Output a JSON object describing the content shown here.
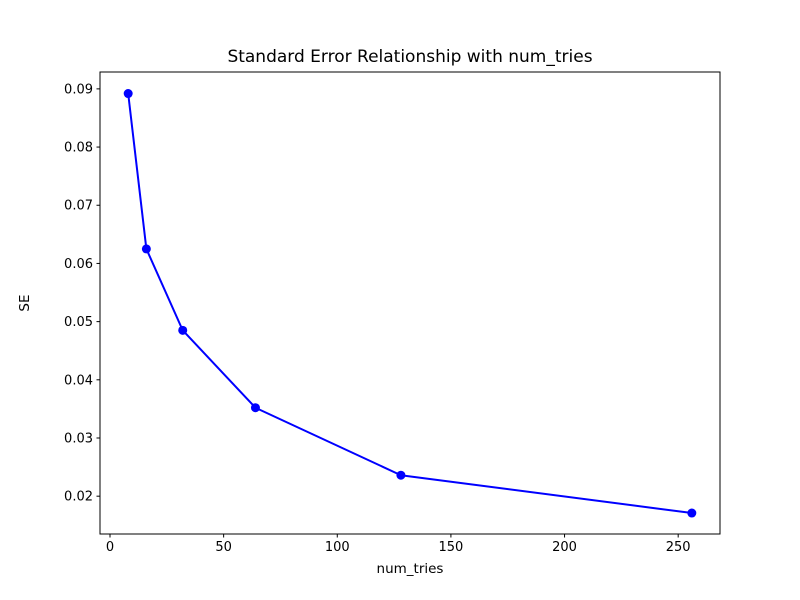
{
  "chart_data": {
    "type": "line",
    "title": "Standard Error Relationship with num_tries",
    "xlabel": "num_tries",
    "ylabel": "SE",
    "x": [
      8,
      16,
      32,
      64,
      128,
      256
    ],
    "y": [
      0.0892,
      0.0625,
      0.0485,
      0.0352,
      0.0236,
      0.0171
    ],
    "line_color": "#0000ff",
    "marker": "circle",
    "marker_color": "#0000ff",
    "axis_color": "#000000",
    "background_color": "#ffffff",
    "grid": false,
    "legend": null,
    "xlim": [
      -4.4,
      268.4
    ],
    "ylim": [
      0.0135,
      0.0929
    ],
    "xticks": {
      "values": [
        0,
        50,
        100,
        150,
        200,
        250
      ],
      "labels": [
        "0",
        "50",
        "100",
        "150",
        "200",
        "250"
      ]
    },
    "yticks": {
      "values": [
        0.02,
        0.03,
        0.04,
        0.05,
        0.06,
        0.07,
        0.08,
        0.09
      ],
      "labels": [
        "0.02",
        "0.03",
        "0.04",
        "0.05",
        "0.06",
        "0.07",
        "0.08",
        "0.09"
      ]
    }
  }
}
